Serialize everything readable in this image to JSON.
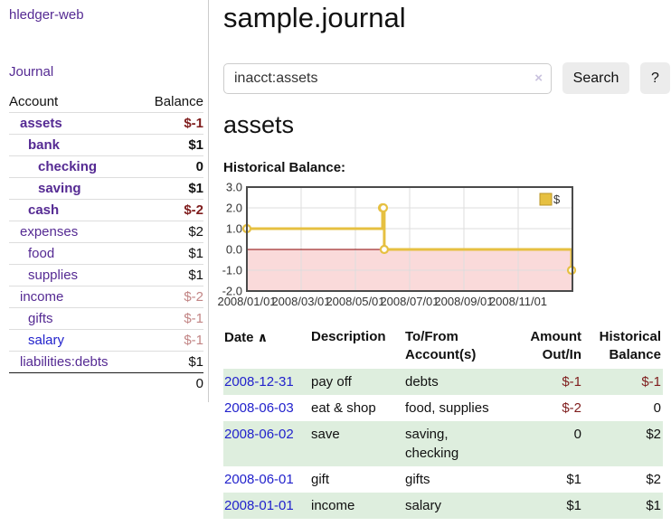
{
  "colors": {
    "link_purple": "#552a93",
    "link_blue": "#2222cc",
    "negative_strong": "#7f1d1d",
    "negative_faded": "#c28585",
    "row_stripe_green": "#deeede",
    "button_grey": "#ececec"
  },
  "sidebar": {
    "brand": "hledger-web",
    "journal_link": "Journal",
    "accounts": {
      "header_account": "Account",
      "header_balance": "Balance",
      "rows": [
        {
          "name": "assets",
          "balance": "$-1"
        },
        {
          "name": "bank",
          "balance": "$1"
        },
        {
          "name": "checking",
          "balance": "0"
        },
        {
          "name": "saving",
          "balance": "$1"
        },
        {
          "name": "cash",
          "balance": "$-2"
        },
        {
          "name": "expenses",
          "balance": "$2"
        },
        {
          "name": "food",
          "balance": "$1"
        },
        {
          "name": "supplies",
          "balance": "$1"
        },
        {
          "name": "income",
          "balance": "$-2"
        },
        {
          "name": "gifts",
          "balance": "$-1"
        },
        {
          "name": "salary",
          "balance": "$-1"
        },
        {
          "name": "liabilities:debts",
          "balance": "$1"
        }
      ],
      "total": "0"
    }
  },
  "main": {
    "title": "sample.journal",
    "search": {
      "value": "inacct:assets",
      "clear_icon": "×",
      "search_button": "Search",
      "help_button": "?"
    },
    "account_heading": "assets",
    "chart_title": "Historical Balance:"
  },
  "chart_data": {
    "type": "line",
    "step": true,
    "title": "Historical Balance:",
    "series": [
      {
        "name": "$",
        "x": [
          "2008-01-01",
          "2008-06-01",
          "2008-06-02",
          "2008-06-03",
          "2008-12-31"
        ],
        "y": [
          1,
          2,
          2,
          0,
          -1
        ]
      }
    ],
    "ylim": [
      -2,
      3
    ],
    "yticks": [
      3,
      2,
      1,
      0,
      -1,
      -2
    ],
    "xticks": [
      "2008/01/01",
      "2008/03/01",
      "2008/05/01",
      "2008/07/01",
      "2008/09/01",
      "2008/11/01"
    ],
    "xlim": [
      "2008-01-01",
      "2008-12-31"
    ],
    "grid": true,
    "legend_position": "top-right",
    "line_color": "#e6c041",
    "negative_region_color": "#fadada",
    "zero_line_color": "#8b0000"
  },
  "register": {
    "headers": {
      "date": "Date",
      "sort_icon": "∧",
      "description": "Description",
      "tofrom": "To/From Account(s)",
      "amount": "Amount Out/In",
      "balance": "Historical Balance"
    },
    "rows": [
      {
        "date": "2008-12-31",
        "description": "pay off",
        "accounts": "debts",
        "amount": "$-1",
        "balance": "$-1"
      },
      {
        "date": "2008-06-03",
        "description": "eat & shop",
        "accounts": "food, supplies",
        "amount": "$-2",
        "balance": "0"
      },
      {
        "date": "2008-06-02",
        "description": "save",
        "accounts": "saving, checking",
        "amount": "0",
        "balance": "$2"
      },
      {
        "date": "2008-06-01",
        "description": "gift",
        "accounts": "gifts",
        "amount": "$1",
        "balance": "$2"
      },
      {
        "date": "2008-01-01",
        "description": "income",
        "accounts": "salary",
        "amount": "$1",
        "balance": "$1"
      }
    ]
  }
}
